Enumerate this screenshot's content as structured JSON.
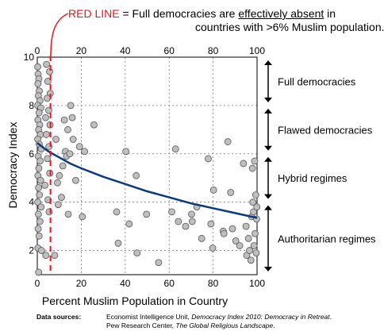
{
  "annotation": {
    "red_label": "RED LINE",
    "line1_prefix": " = Full democracies are ",
    "line1_underlined": "effectively absent",
    "line1_suffix": " in",
    "line2": "countries with >6% Muslim population."
  },
  "sources": {
    "label": "Data sources:",
    "line1_plain": "Economist Intelligence Unit, ",
    "line1_italic": "Democracy Index 2010: Democracy in Retreat",
    "line1_end": ".",
    "line2_plain": "Pew Research Center, ",
    "line2_italic": "The Global Religious Landscape",
    "line2_end": "."
  },
  "colors": {
    "points_fill": "#bfbfbf",
    "points_stroke": "#555555",
    "trend": "#0b3a7c",
    "red_line": "#e8141b"
  },
  "chart_data": {
    "type": "scatter",
    "xlabel": "Percent Muslim Population in Country",
    "ylabel": "Democracy Index",
    "xlim": [
      0,
      100
    ],
    "ylim": [
      1,
      10
    ],
    "x_ticks": [
      0,
      20,
      40,
      60,
      80,
      100
    ],
    "y_ticks": [
      2,
      4,
      6,
      8,
      10
    ],
    "x_tick_labels": [
      "0",
      "20",
      "40",
      "60",
      "80",
      "100"
    ],
    "y_tick_labels": [
      "2",
      "4",
      "6",
      "8",
      "10"
    ],
    "grid": true,
    "threshold_x": 6,
    "regimes": [
      {
        "label": "Full democracies",
        "from": 8,
        "to": 10
      },
      {
        "label": "Flawed democracies",
        "from": 6,
        "to": 8
      },
      {
        "label": "Hybrid regimes",
        "from": 4,
        "to": 6
      },
      {
        "label": "Authoritarian regimes",
        "from": 1,
        "to": 4
      }
    ],
    "trend": {
      "x": [
        0,
        5,
        10,
        15,
        20,
        30,
        40,
        50,
        60,
        70,
        80,
        90,
        100
      ],
      "y": [
        6.45,
        6.1,
        5.85,
        5.6,
        5.4,
        5.05,
        4.75,
        4.45,
        4.2,
        3.95,
        3.75,
        3.55,
        3.35
      ]
    },
    "points": [
      {
        "x": 0.2,
        "y": 9.6
      },
      {
        "x": 0.4,
        "y": 9.3
      },
      {
        "x": 0.7,
        "y": 9.1
      },
      {
        "x": 0.3,
        "y": 8.9
      },
      {
        "x": 0.9,
        "y": 8.6
      },
      {
        "x": 0.5,
        "y": 8.4
      },
      {
        "x": 1.2,
        "y": 8.2
      },
      {
        "x": 0.2,
        "y": 8.0
      },
      {
        "x": 1.6,
        "y": 7.9
      },
      {
        "x": 0.8,
        "y": 7.7
      },
      {
        "x": 0.3,
        "y": 7.4
      },
      {
        "x": 1.1,
        "y": 7.2
      },
      {
        "x": 0.6,
        "y": 7.0
      },
      {
        "x": 1.4,
        "y": 6.8
      },
      {
        "x": 0.2,
        "y": 6.6
      },
      {
        "x": 0.9,
        "y": 6.4
      },
      {
        "x": 1.8,
        "y": 6.2
      },
      {
        "x": 0.4,
        "y": 5.9
      },
      {
        "x": 1.3,
        "y": 5.7
      },
      {
        "x": 0.7,
        "y": 5.4
      },
      {
        "x": 0.3,
        "y": 5.1
      },
      {
        "x": 1.5,
        "y": 4.9
      },
      {
        "x": 0.6,
        "y": 4.6
      },
      {
        "x": 1.0,
        "y": 4.3
      },
      {
        "x": 0.2,
        "y": 4.0
      },
      {
        "x": 1.7,
        "y": 3.8
      },
      {
        "x": 0.5,
        "y": 3.5
      },
      {
        "x": 1.2,
        "y": 3.2
      },
      {
        "x": 0.4,
        "y": 2.9
      },
      {
        "x": 0.8,
        "y": 2.6
      },
      {
        "x": 0.3,
        "y": 2.1
      },
      {
        "x": 1.9,
        "y": 2.0
      },
      {
        "x": 0.6,
        "y": 1.1
      },
      {
        "x": 4.2,
        "y": 9.7
      },
      {
        "x": 5.6,
        "y": 9.4
      },
      {
        "x": 4.8,
        "y": 9.0
      },
      {
        "x": 5.9,
        "y": 8.5
      },
      {
        "x": 4.5,
        "y": 8.3
      },
      {
        "x": 5.2,
        "y": 7.8
      },
      {
        "x": 3.8,
        "y": 7.5
      },
      {
        "x": 5.8,
        "y": 7.2
      },
      {
        "x": 4.1,
        "y": 6.8
      },
      {
        "x": 5.3,
        "y": 6.3
      },
      {
        "x": 4.6,
        "y": 5.8
      },
      {
        "x": 5.7,
        "y": 5.2
      },
      {
        "x": 3.5,
        "y": 4.7
      },
      {
        "x": 4.9,
        "y": 4.1
      },
      {
        "x": 5.4,
        "y": 3.6
      },
      {
        "x": 3.9,
        "y": 1.8
      },
      {
        "x": 8.5,
        "y": 6.6
      },
      {
        "x": 9.2,
        "y": 4.8
      },
      {
        "x": 10.1,
        "y": 5.1
      },
      {
        "x": 11.0,
        "y": 4.2
      },
      {
        "x": 11.6,
        "y": 5.5
      },
      {
        "x": 12.3,
        "y": 7.4
      },
      {
        "x": 12.8,
        "y": 6.1
      },
      {
        "x": 13.3,
        "y": 5.9
      },
      {
        "x": 13.9,
        "y": 7.0
      },
      {
        "x": 14.8,
        "y": 6.0
      },
      {
        "x": 15.2,
        "y": 8.0
      },
      {
        "x": 15.9,
        "y": 7.5
      },
      {
        "x": 16.3,
        "y": 6.6
      },
      {
        "x": 17.5,
        "y": 4.9
      },
      {
        "x": 19.2,
        "y": 6.3
      },
      {
        "x": 21.5,
        "y": 6.1
      },
      {
        "x": 25.8,
        "y": 7.2
      },
      {
        "x": 7.9,
        "y": 1.8
      },
      {
        "x": 9.5,
        "y": 3.9
      },
      {
        "x": 14.1,
        "y": 3.5
      },
      {
        "x": 20.5,
        "y": 3.4
      },
      {
        "x": 36.1,
        "y": 3.6
      },
      {
        "x": 40.3,
        "y": 6.1
      },
      {
        "x": 36.8,
        "y": 2.3
      },
      {
        "x": 41.8,
        "y": 3.1
      },
      {
        "x": 45.0,
        "y": 5.1
      },
      {
        "x": 45.4,
        "y": 1.9
      },
      {
        "x": 49.7,
        "y": 3.5
      },
      {
        "x": 55.2,
        "y": 1.5
      },
      {
        "x": 61.2,
        "y": 3.6
      },
      {
        "x": 62.9,
        "y": 6.2
      },
      {
        "x": 64.2,
        "y": 3.2
      },
      {
        "x": 67.5,
        "y": 3.0
      },
      {
        "x": 70.2,
        "y": 3.5
      },
      {
        "x": 70.5,
        "y": 3.2
      },
      {
        "x": 72.6,
        "y": 3.8
      },
      {
        "x": 74.8,
        "y": 2.5
      },
      {
        "x": 77.8,
        "y": 5.8
      },
      {
        "x": 79.0,
        "y": 3.1
      },
      {
        "x": 79.8,
        "y": 2.1
      },
      {
        "x": 84.6,
        "y": 2.8
      },
      {
        "x": 84.9,
        "y": 2.7
      },
      {
        "x": 86.7,
        "y": 6.5
      },
      {
        "x": 88.8,
        "y": 2.9
      },
      {
        "x": 90.3,
        "y": 2.4
      },
      {
        "x": 92.1,
        "y": 2.2
      },
      {
        "x": 93.8,
        "y": 5.6
      },
      {
        "x": 95.0,
        "y": 3.0
      },
      {
        "x": 95.3,
        "y": 1.8
      },
      {
        "x": 96.1,
        "y": 2.5
      },
      {
        "x": 96.6,
        "y": 2.0
      },
      {
        "x": 97.2,
        "y": 1.6
      },
      {
        "x": 97.5,
        "y": 3.4
      },
      {
        "x": 97.9,
        "y": 5.4
      },
      {
        "x": 98.1,
        "y": 4.0
      },
      {
        "x": 98.4,
        "y": 3.6
      },
      {
        "x": 98.6,
        "y": 2.2
      },
      {
        "x": 98.9,
        "y": 5.7
      },
      {
        "x": 99.1,
        "y": 2.7
      },
      {
        "x": 99.4,
        "y": 4.3
      },
      {
        "x": 99.6,
        "y": 1.9
      },
      {
        "x": 99.8,
        "y": 3.3
      },
      {
        "x": 99.9,
        "y": 3.8
      },
      {
        "x": 80.2,
        "y": 4.5
      },
      {
        "x": 88.0,
        "y": 4.4
      }
    ]
  }
}
